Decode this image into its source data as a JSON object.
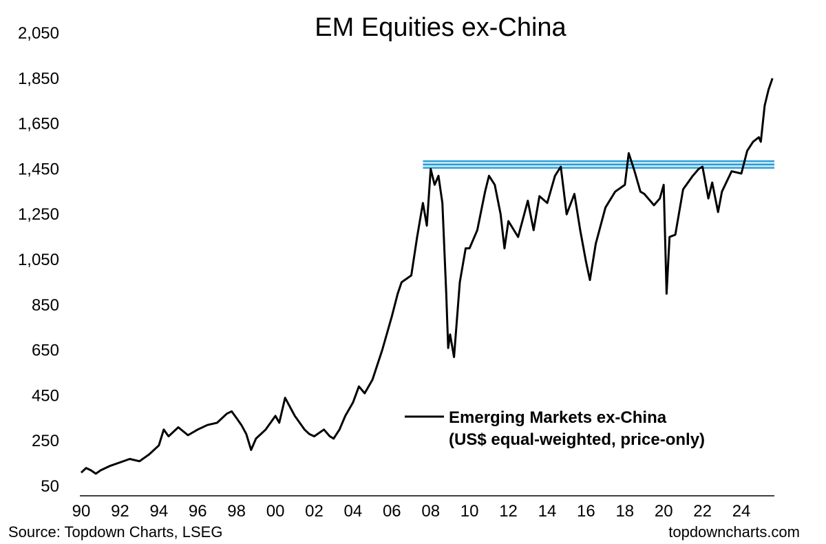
{
  "chart_data": {
    "type": "line",
    "title": "EM Equities ex-China",
    "xlabel": "",
    "ylabel": "",
    "xlim": [
      1990,
      2025.7
    ],
    "ylim": [
      50,
      2050
    ],
    "y_ticks": [
      50,
      250,
      450,
      650,
      850,
      1050,
      1250,
      1450,
      1650,
      1850,
      2050
    ],
    "y_tick_labels": [
      "50",
      "250",
      "450",
      "650",
      "850",
      "1,050",
      "1,250",
      "1,450",
      "1,650",
      "1,850",
      "2,050"
    ],
    "x_ticks": [
      1990,
      1992,
      1994,
      1996,
      1998,
      2000,
      2002,
      2004,
      2006,
      2008,
      2010,
      2012,
      2014,
      2016,
      2018,
      2020,
      2022,
      2024
    ],
    "x_tick_labels": [
      "90",
      "92",
      "94",
      "96",
      "98",
      "00",
      "02",
      "04",
      "06",
      "08",
      "10",
      "12",
      "14",
      "16",
      "18",
      "20",
      "22",
      "24"
    ],
    "grid": false,
    "legend_position": "bottom-right",
    "series": [
      {
        "name": "Emerging Markets ex-China",
        "name_line2": "(US$ equal-weighted, price-only)",
        "color": "#000000",
        "x": [
          1990.0,
          1990.25,
          1990.5,
          1990.75,
          1991.0,
          1991.5,
          1992.0,
          1992.5,
          1993.0,
          1993.5,
          1994.0,
          1994.25,
          1994.5,
          1994.75,
          1995.0,
          1995.5,
          1996.0,
          1996.5,
          1997.0,
          1997.5,
          1997.75,
          1998.0,
          1998.25,
          1998.5,
          1998.75,
          1999.0,
          1999.5,
          2000.0,
          2000.2,
          2000.5,
          2001.0,
          2001.5,
          2001.75,
          2002.0,
          2002.5,
          2002.8,
          2003.0,
          2003.3,
          2003.6,
          2004.0,
          2004.3,
          2004.6,
          2005.0,
          2005.5,
          2006.0,
          2006.3,
          2006.5,
          2007.0,
          2007.3,
          2007.6,
          2007.8,
          2008.0,
          2008.2,
          2008.4,
          2008.6,
          2008.8,
          2008.9,
          2009.0,
          2009.2,
          2009.5,
          2009.8,
          2010.0,
          2010.4,
          2010.8,
          2011.0,
          2011.3,
          2011.6,
          2011.8,
          2012.0,
          2012.5,
          2013.0,
          2013.3,
          2013.6,
          2014.0,
          2014.4,
          2014.7,
          2015.0,
          2015.4,
          2015.7,
          2016.0,
          2016.2,
          2016.5,
          2017.0,
          2017.5,
          2018.0,
          2018.2,
          2018.5,
          2018.8,
          2019.0,
          2019.5,
          2019.8,
          2020.0,
          2020.15,
          2020.3,
          2020.6,
          2021.0,
          2021.5,
          2021.8,
          2022.0,
          2022.3,
          2022.5,
          2022.8,
          2023.0,
          2023.5,
          2024.0,
          2024.3,
          2024.6,
          2024.9,
          2025.0,
          2025.2,
          2025.4,
          2025.6
        ],
        "values": [
          110,
          130,
          120,
          105,
          120,
          140,
          155,
          170,
          160,
          190,
          230,
          300,
          270,
          290,
          310,
          275,
          300,
          320,
          330,
          370,
          380,
          350,
          320,
          280,
          210,
          260,
          300,
          360,
          330,
          440,
          360,
          300,
          280,
          270,
          300,
          270,
          260,
          300,
          360,
          420,
          490,
          460,
          520,
          650,
          800,
          900,
          950,
          980,
          1150,
          1300,
          1200,
          1450,
          1380,
          1420,
          1300,
          900,
          660,
          720,
          620,
          950,
          1100,
          1100,
          1180,
          1350,
          1420,
          1380,
          1250,
          1100,
          1220,
          1150,
          1310,
          1180,
          1330,
          1300,
          1420,
          1460,
          1250,
          1340,
          1180,
          1040,
          960,
          1120,
          1280,
          1350,
          1380,
          1520,
          1440,
          1350,
          1340,
          1290,
          1320,
          1380,
          900,
          1150,
          1160,
          1360,
          1420,
          1450,
          1460,
          1320,
          1390,
          1260,
          1350,
          1440,
          1430,
          1530,
          1570,
          1590,
          1570,
          1730,
          1800,
          1850
        ]
      }
    ],
    "annotations": [
      {
        "type": "horizontal-band",
        "y": 1470,
        "color": "#1a96d4",
        "x_start": 2007.6,
        "x_end": 2025.7
      }
    ]
  },
  "footer": {
    "source": "Source: Topdown Charts, LSEG",
    "site": "topdowncharts.com"
  }
}
